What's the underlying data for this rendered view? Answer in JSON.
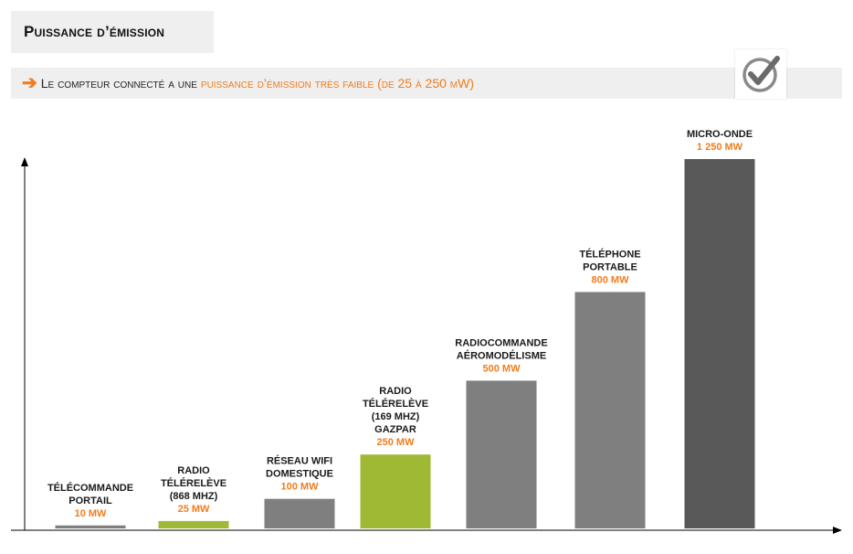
{
  "title": "Puissance d’émission",
  "subtitle": {
    "prefix": "Le compteur connecté a une",
    "highlight": "puissance d’émission très faible (de 25 à 250 mW)"
  },
  "badge_icon": "checkmark-icon",
  "colors": {
    "accent": "#f07d1c",
    "highlight_bar": "#a0b935",
    "default_bar": "#7f7f7f",
    "max_bar": "#595959"
  },
  "chart_data": {
    "type": "bar",
    "unit": "mW",
    "ylim": [
      0,
      1250
    ],
    "grid": false,
    "categories": [
      {
        "label": [
          "TÉLÉCOMMANDE",
          "PORTAIL"
        ],
        "value": 10,
        "value_label": "10 MW",
        "highlight": false
      },
      {
        "label": [
          "RADIO",
          "TÉLÉRELÈVE",
          "(868 MHZ)"
        ],
        "value": 25,
        "value_label": "25 MW",
        "highlight": true
      },
      {
        "label": [
          "RÉSEAU WIFI",
          "DOMESTIQUE"
        ],
        "value": 100,
        "value_label": "100 MW",
        "highlight": false
      },
      {
        "label": [
          "RADIO",
          "TÉLÉRELÈVE",
          "(169 MHZ)",
          "GAZPAR"
        ],
        "value": 250,
        "value_label": "250 MW",
        "highlight": true
      },
      {
        "label": [
          "RADIOCOMMANDE",
          "AÉROMODÉLISME"
        ],
        "value": 500,
        "value_label": "500 MW",
        "highlight": false
      },
      {
        "label": [
          "TÉLÉPHONE",
          "PORTABLE"
        ],
        "value": 800,
        "value_label": "800 MW",
        "highlight": false
      },
      {
        "label": [
          "MICRO-ONDE"
        ],
        "value": 1250,
        "value_label": "1 250 MW",
        "highlight": false
      }
    ]
  }
}
